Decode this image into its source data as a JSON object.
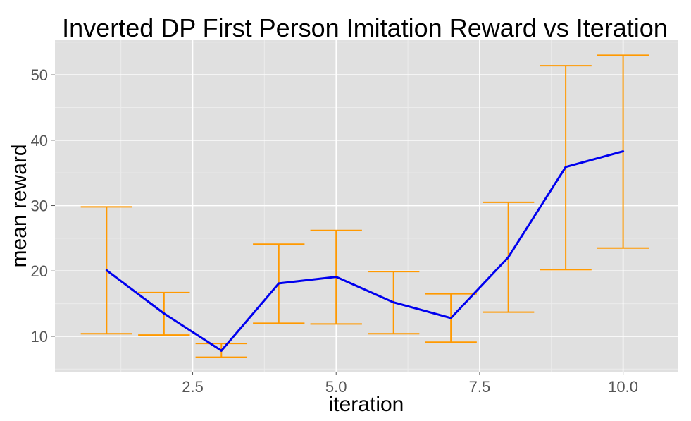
{
  "chart_data": {
    "type": "line",
    "title": "Inverted DP First Person Imitation Reward vs Iteration",
    "xlabel": "iteration",
    "ylabel": "mean reward",
    "x": [
      1,
      2,
      3,
      4,
      5,
      6,
      7,
      8,
      9,
      10
    ],
    "series": [
      {
        "values": [
          20.1,
          13.5,
          7.8,
          18.1,
          19.1,
          15.2,
          12.8,
          22.1,
          35.9,
          38.3
        ],
        "lower": [
          10.4,
          10.2,
          6.8,
          12.0,
          11.9,
          10.4,
          9.1,
          13.7,
          20.2,
          23.5
        ],
        "upper": [
          29.8,
          16.7,
          8.9,
          24.1,
          26.2,
          19.9,
          16.5,
          30.5,
          51.4,
          53.0
        ],
        "color": "#0000ee",
        "error_bar_color": "#ff9900"
      }
    ],
    "xlim": [
      0.1,
      10.95
    ],
    "ylim": [
      4.6,
      55.3
    ],
    "x_ticks": [
      2.5,
      5.0,
      7.5,
      10.0
    ],
    "x_tick_labels": [
      "2.5",
      "5.0",
      "7.5",
      "10.0"
    ],
    "y_ticks": [
      10,
      20,
      30,
      40,
      50
    ],
    "y_tick_labels": [
      "10",
      "20",
      "30",
      "40",
      "50"
    ],
    "grid": true,
    "panel_background": "#e0e0e0",
    "legend": "none"
  }
}
